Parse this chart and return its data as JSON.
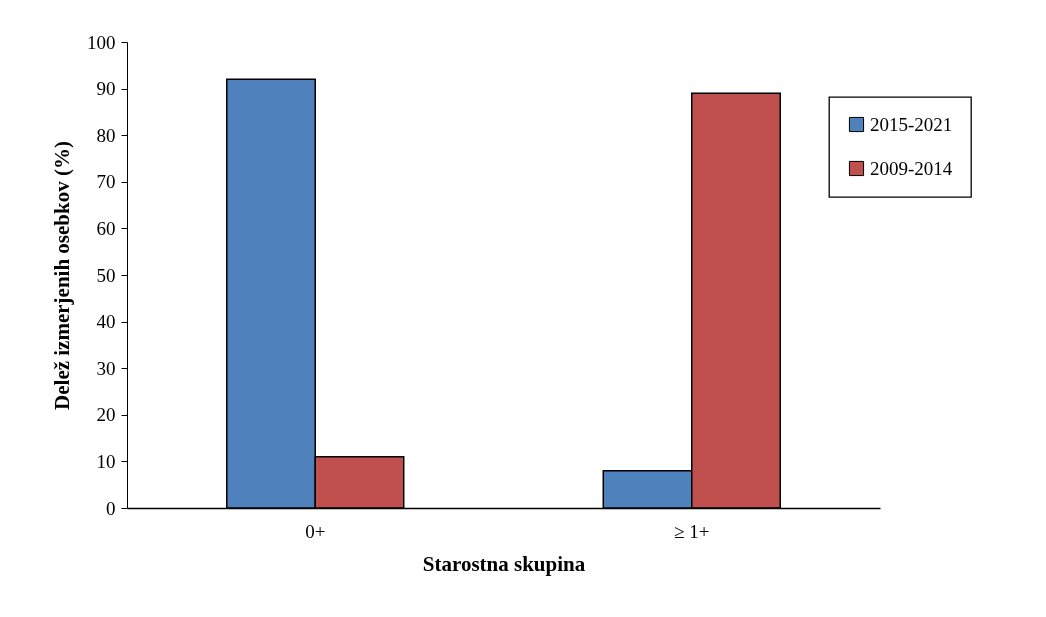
{
  "chart_data": {
    "type": "bar",
    "xlabel": "Starostna skupina",
    "ylabel": "Delež izmerjenih osebkov (%)",
    "categories": [
      "0+",
      "≥ 1+"
    ],
    "series": [
      {
        "name": "2015-2021",
        "color": "#4f81bd",
        "values": [
          92,
          8
        ]
      },
      {
        "name": "2009-2014",
        "color": "#c0504d",
        "values": [
          11,
          89
        ]
      }
    ],
    "ylim": [
      0,
      100
    ],
    "yticks": [
      0,
      10,
      20,
      30,
      40,
      50,
      60,
      70,
      80,
      90,
      100
    ],
    "grid": false,
    "legend": "top right"
  }
}
